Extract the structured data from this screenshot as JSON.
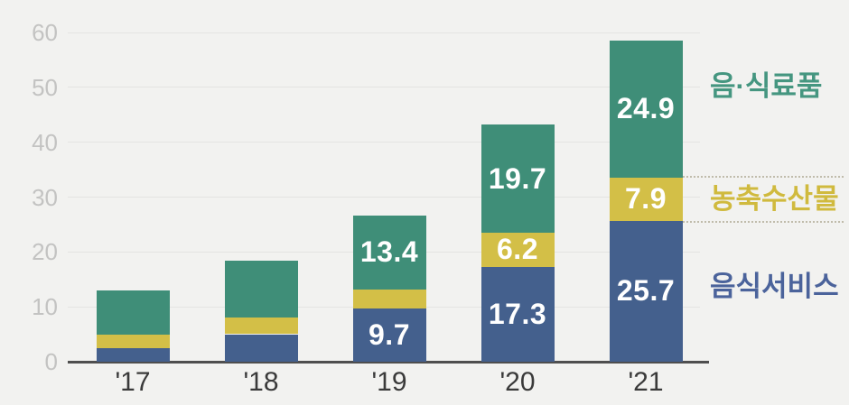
{
  "chart_data": {
    "type": "bar",
    "subtype": "stacked",
    "title": "",
    "xlabel": "",
    "ylabel": "",
    "categories": [
      "'17",
      "'18",
      "'19",
      "'20",
      "'21"
    ],
    "series": [
      {
        "name": "음식서비스",
        "color": "#44608d",
        "values": [
          2.5,
          5.0,
          9.7,
          17.3,
          25.7
        ],
        "data_labels": [
          "",
          "",
          "9.7",
          "17.3",
          "25.7"
        ]
      },
      {
        "name": "농축수산물",
        "color": "#d3bf47",
        "values": [
          2.5,
          3.0,
          3.5,
          6.2,
          7.9
        ],
        "data_labels": [
          "",
          "",
          "",
          "6.2",
          "7.9"
        ]
      },
      {
        "name": "음·식료품",
        "color": "#3f8e78",
        "values": [
          8.0,
          10.5,
          13.4,
          19.7,
          24.9
        ],
        "data_labels": [
          "",
          "",
          "13.4",
          "19.7",
          "24.9"
        ]
      }
    ],
    "y_ticks": [
      0,
      10,
      20,
      30,
      40,
      50,
      60
    ],
    "ylim": [
      0,
      60
    ],
    "grid": true,
    "legend_position": "right"
  },
  "legend": {
    "items": [
      {
        "label": "음·식료품",
        "text_color": "#459680"
      },
      {
        "label": "농축수산물",
        "text_color": "#d0ba3e"
      },
      {
        "label": "음식서비스",
        "text_color": "#4b639b"
      }
    ]
  },
  "colors": {
    "background": "#f2f2f0",
    "gridline": "#e4e4e2",
    "axis_line": "#4f4f4f",
    "y_tick_text": "#c3c3c2",
    "x_tick_text": "#3a3a3a",
    "bar_value_text": "#ffffff",
    "leader_dotted": "#c0bcab"
  }
}
